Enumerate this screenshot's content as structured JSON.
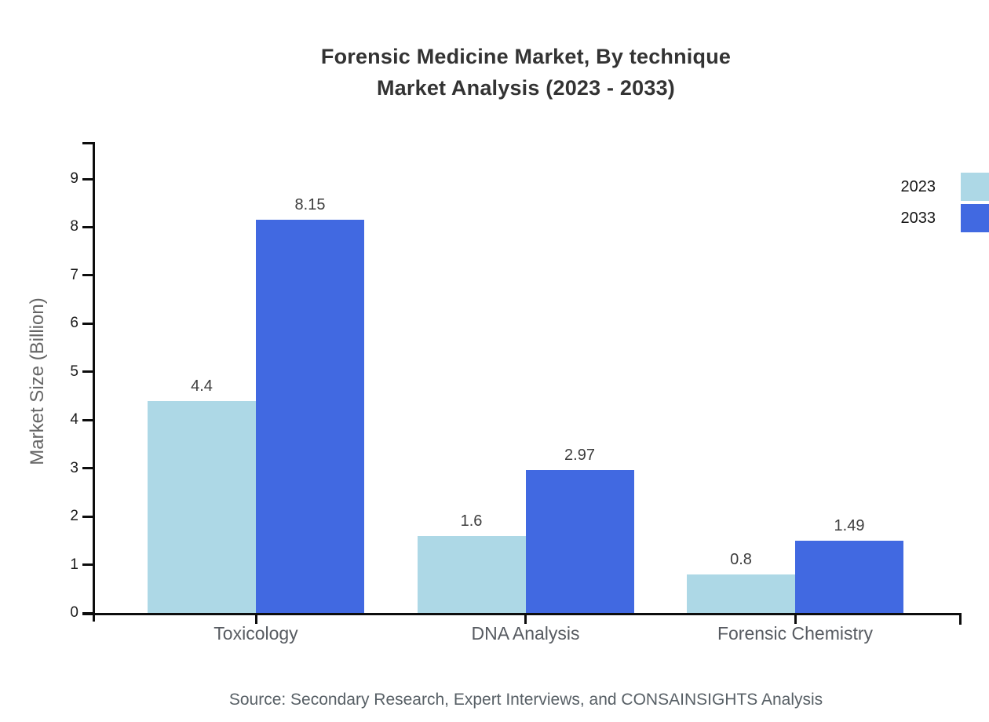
{
  "title": {
    "line1": "Forensic Medicine Market, By technique",
    "line2": "Market Analysis (2023 - 2033)"
  },
  "source": "Source: Secondary Research, Expert Interviews, and CONSAINSIGHTS Analysis",
  "chart_data": {
    "type": "bar",
    "title": "Forensic Medicine Market, By technique Market Analysis (2023 - 2033)",
    "categories": [
      "Toxicology",
      "DNA Analysis",
      "Forensic Chemistry"
    ],
    "series": [
      {
        "name": "2023",
        "color": "#ADD8E6",
        "values": [
          4.4,
          1.6,
          0.8
        ]
      },
      {
        "name": "2033",
        "color": "#4169E1",
        "values": [
          8.15,
          2.97,
          1.49
        ]
      }
    ],
    "xlabel": "",
    "ylabel": "Market Size (Billion)",
    "ylim": [
      0,
      9
    ],
    "yticks": [
      0,
      1,
      2,
      3,
      4,
      5,
      6,
      7,
      8,
      9
    ],
    "grid": false,
    "legend_position": "top-right",
    "value_labels_shown": true
  }
}
